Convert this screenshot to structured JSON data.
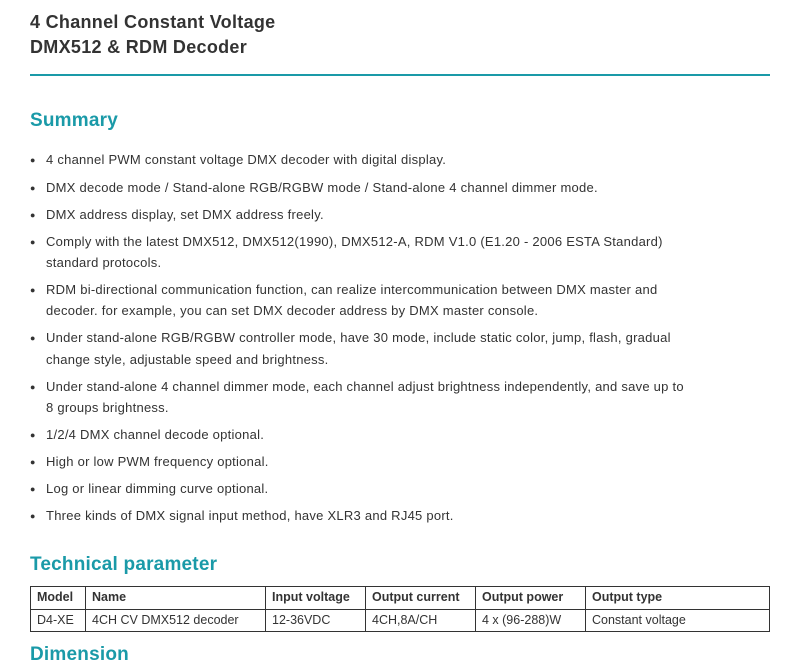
{
  "title": {
    "line1": "4 Channel Constant Voltage",
    "line2": "DMX512 & RDM Decoder"
  },
  "sections": {
    "summary": {
      "heading": "Summary",
      "items": [
        {
          "text": "4 channel PWM constant voltage DMX decoder with digital display."
        },
        {
          "text": "DMX decode mode / Stand-alone RGB/RGBW mode / Stand-alone 4 channel dimmer mode."
        },
        {
          "text": "DMX address display, set DMX address freely."
        },
        {
          "text": "Comply with the latest DMX512, DMX512(1990), DMX512-A, RDM V1.0 (E1.20 - 2006 ESTA Standard)",
          "text2": "standard protocols."
        },
        {
          "text": "RDM bi-directional communication function, can realize intercommunication between DMX master and",
          "text2": "decoder. for example, you can set DMX decoder address by DMX master console."
        },
        {
          "text": "Under stand-alone RGB/RGBW controller mode, have 30 mode, include static color, jump, flash, gradual",
          "text2": "change style, adjustable speed and brightness."
        },
        {
          "text": "Under stand-alone 4 channel dimmer mode, each channel adjust brightness independently, and save up to",
          "text2": "8 groups brightness."
        },
        {
          "text": "1/2/4 DMX channel decode optional."
        },
        {
          "text": "High or low PWM frequency optional."
        },
        {
          "text": "Log or linear dimming curve optional."
        },
        {
          "text": "Three kinds of DMX signal input method, have XLR3 and RJ45 port."
        }
      ]
    },
    "technical": {
      "heading": "Technical parameter",
      "columns": [
        "Model",
        "Name",
        "Input voltage",
        "Output current",
        "Output power",
        "Output type"
      ],
      "rows": [
        [
          "D4-XE",
          "4CH CV DMX512 decoder",
          "12-36VDC",
          "4CH,8A/CH",
          "4 x (96-288)W",
          "Constant voltage"
        ]
      ]
    },
    "dimension": {
      "heading": "Dimension"
    }
  },
  "colors": {
    "accent": "#1a9aa8",
    "text": "#333333",
    "border": "#333333",
    "background": "#ffffff"
  }
}
